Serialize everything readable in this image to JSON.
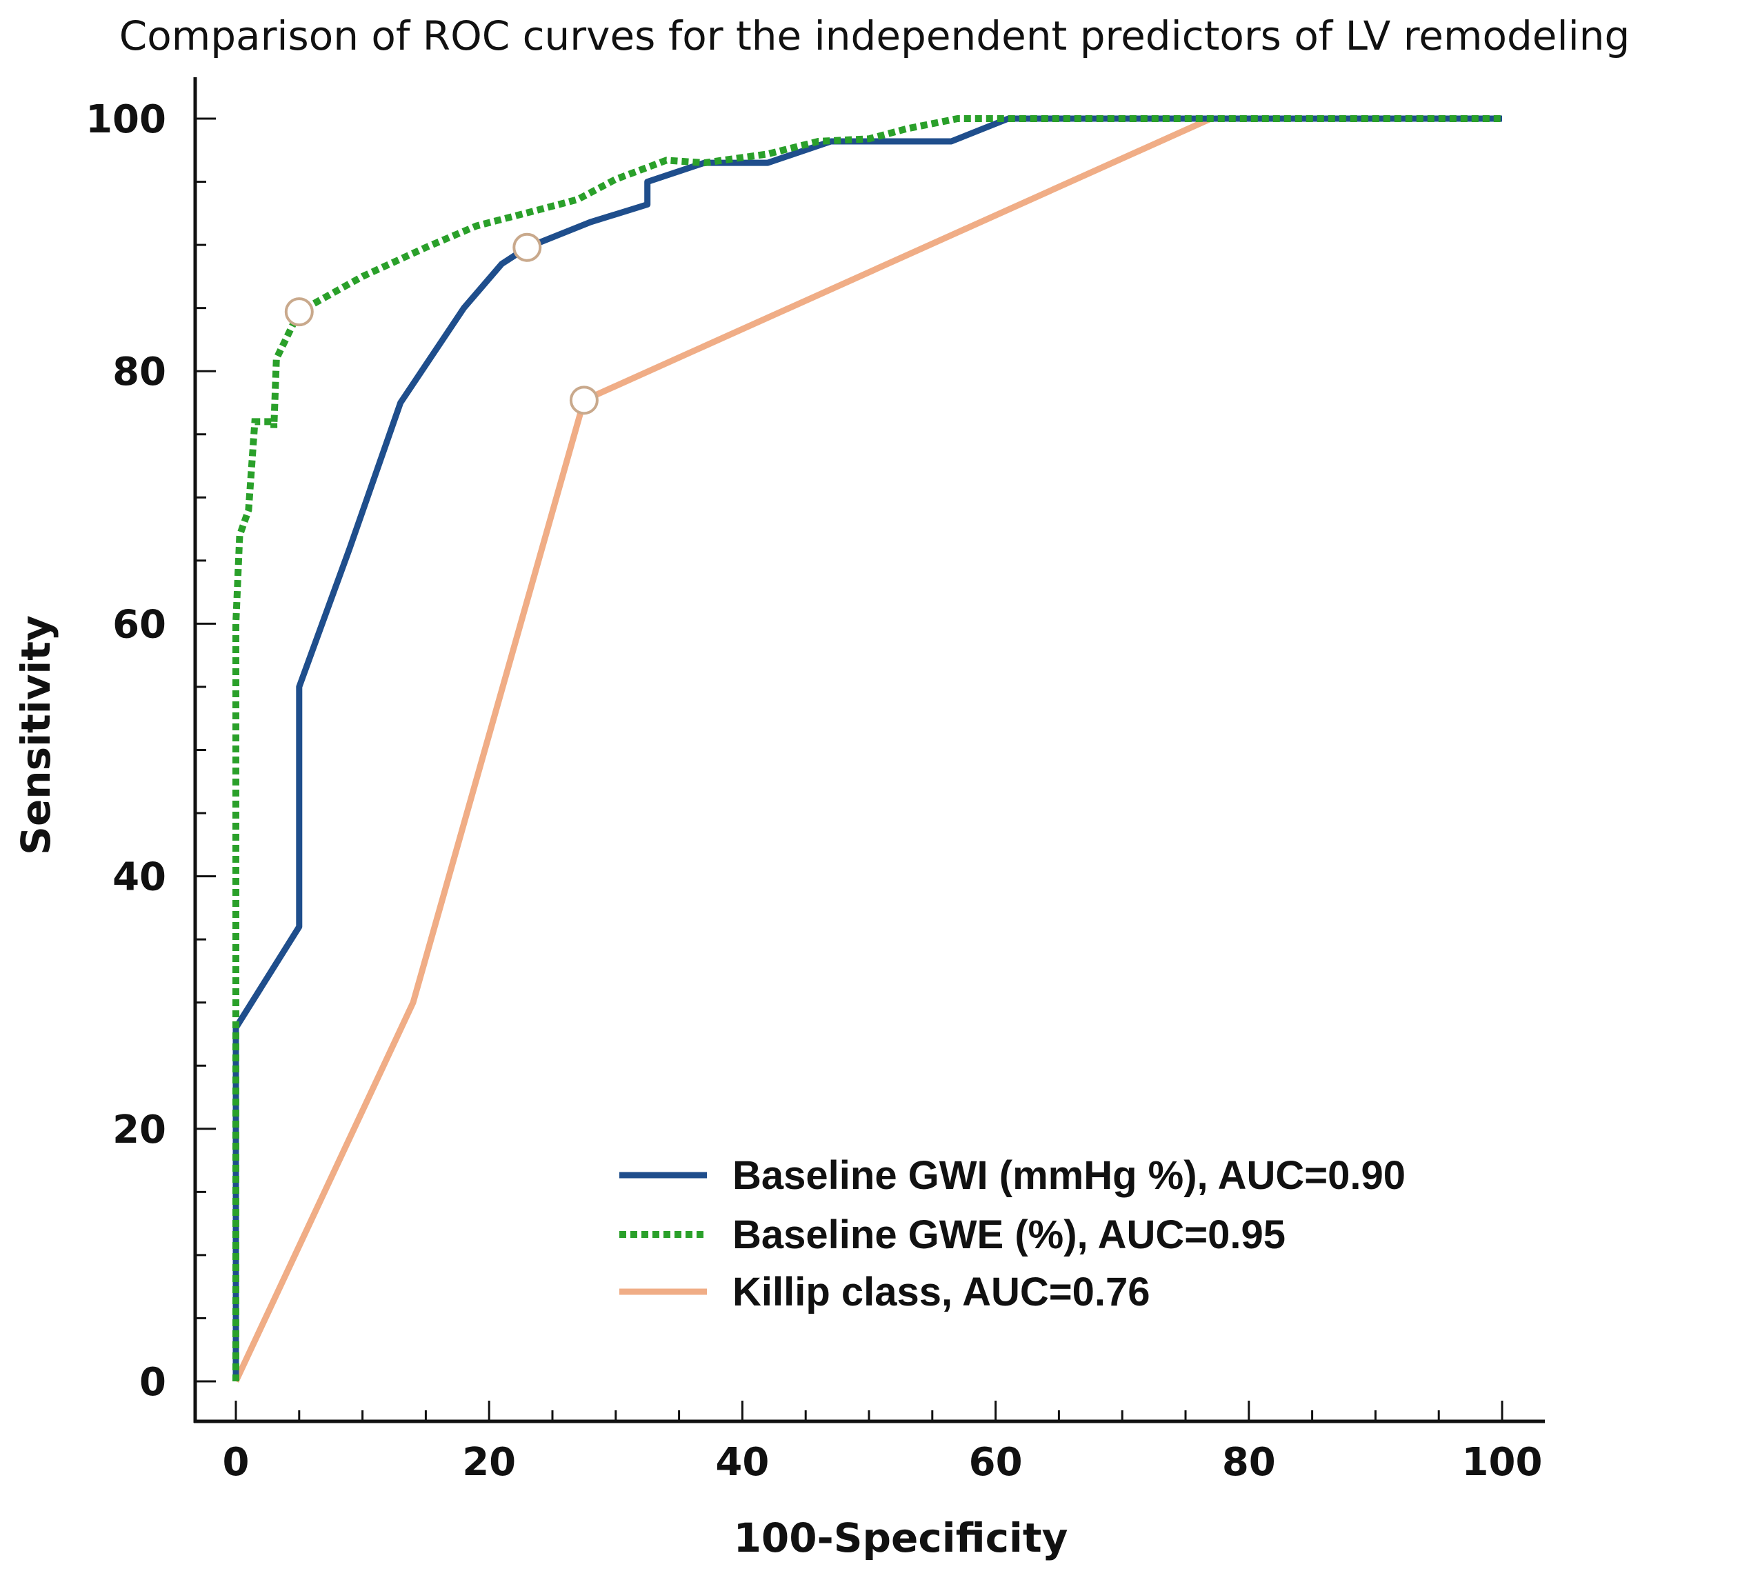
{
  "chart_data": {
    "type": "line",
    "title": "Comparison of ROC curves for the independent predictors of LV remodeling",
    "xlabel": "100-Specificity",
    "ylabel": "Sensitivity",
    "xlim": [
      0,
      100
    ],
    "ylim": [
      0,
      100
    ],
    "xticks": [
      0,
      20,
      40,
      60,
      80,
      100
    ],
    "yticks": [
      0,
      20,
      40,
      60,
      80,
      100
    ],
    "xticks_minor_step": 5,
    "yticks_minor_step": 5,
    "grid": false,
    "legend_position": "lower-right",
    "series": [
      {
        "name": "Baseline GWI (mmHg %), AUC=0.90",
        "color": "#1f4e8c",
        "style": "solid",
        "points": [
          [
            0,
            0
          ],
          [
            0,
            28
          ],
          [
            5,
            36
          ],
          [
            5,
            55
          ],
          [
            9,
            66
          ],
          [
            13,
            77.5
          ],
          [
            18,
            85
          ],
          [
            21,
            88.5
          ],
          [
            23,
            89.8
          ],
          [
            28,
            91.8
          ],
          [
            32.5,
            93.2
          ],
          [
            32.5,
            95
          ],
          [
            37,
            96.5
          ],
          [
            42,
            96.5
          ],
          [
            47,
            98.2
          ],
          [
            52,
            98.2
          ],
          [
            56.5,
            98.2
          ],
          [
            61,
            100
          ],
          [
            100,
            100
          ]
        ],
        "cutoff": [
          23,
          89.8
        ]
      },
      {
        "name": "Baseline GWE (%), AUC=0.95",
        "color": "#2aa02a",
        "style": "dotted",
        "points": [
          [
            0,
            0
          ],
          [
            0,
            28
          ],
          [
            0,
            60
          ],
          [
            0.3,
            67
          ],
          [
            1,
            69
          ],
          [
            1.5,
            76
          ],
          [
            3,
            76
          ],
          [
            3,
            75.5
          ],
          [
            3.2,
            81
          ],
          [
            5,
            84.7
          ],
          [
            10,
            87.5
          ],
          [
            15,
            89.8
          ],
          [
            19,
            91.5
          ],
          [
            24,
            92.8
          ],
          [
            27,
            93.6
          ],
          [
            30,
            95.2
          ],
          [
            34,
            96.7
          ],
          [
            37,
            96.5
          ],
          [
            42,
            97.2
          ],
          [
            46,
            98.2
          ],
          [
            50,
            98.4
          ],
          [
            53,
            99.2
          ],
          [
            57,
            100
          ],
          [
            100,
            100
          ]
        ],
        "cutoff": [
          5,
          84.7
        ]
      },
      {
        "name": "Killip class, AUC=0.76",
        "color": "#f0ad86",
        "style": "solid",
        "points": [
          [
            0,
            0
          ],
          [
            14,
            30
          ],
          [
            27.5,
            77.7
          ],
          [
            77,
            100
          ],
          [
            100,
            100
          ]
        ],
        "cutoff": [
          27.5,
          77.7
        ]
      }
    ]
  }
}
